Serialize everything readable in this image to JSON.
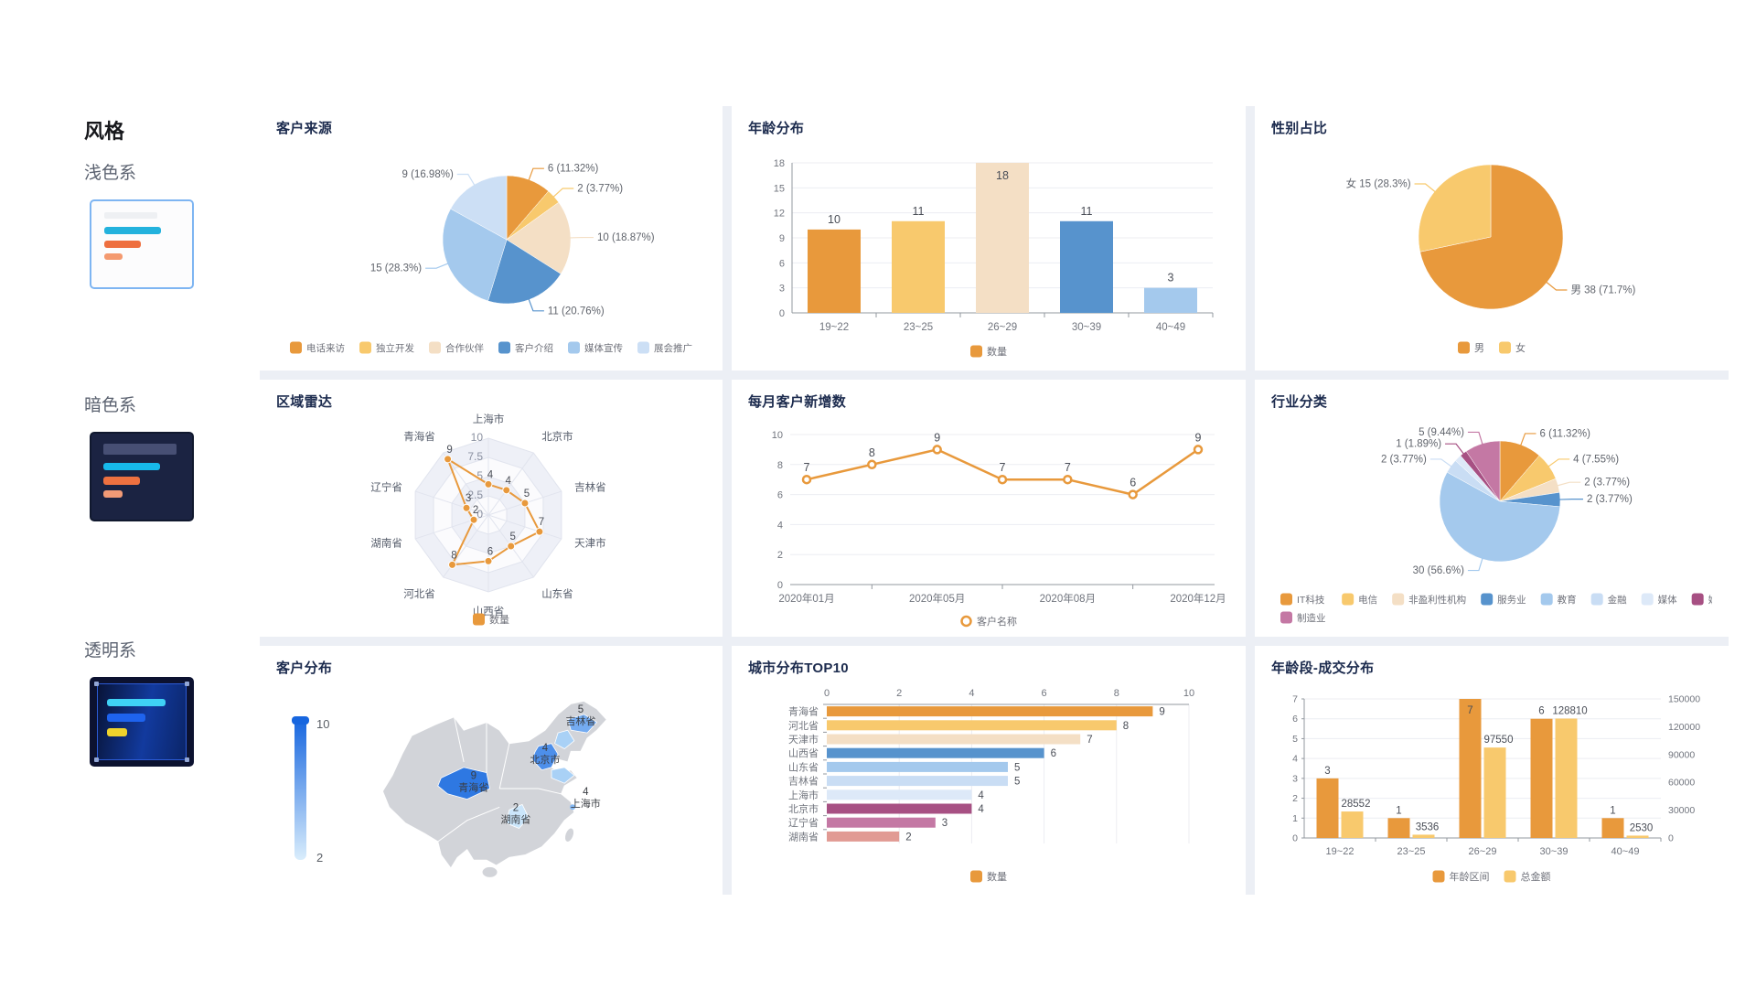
{
  "sidebar": {
    "title": "风格",
    "options": [
      {
        "label": "浅色系",
        "variant": "light",
        "selected": true
      },
      {
        "label": "暗色系",
        "variant": "dark",
        "selected": false
      },
      {
        "label": "透明系",
        "variant": "transparent",
        "selected": false
      }
    ]
  },
  "palette": {
    "orange": "#E8993C",
    "lightOrange": "#F8C96D",
    "peach": "#F4DFC5",
    "blue": "#5793CD",
    "lightBlue": "#A4C9ED",
    "paleBlue": "#C9DDF4",
    "fogBlue": "#DDE9F8",
    "magenta": "#A75083",
    "pink": "#C478A4",
    "salmon": "#E19A93",
    "axisText": "#71757e",
    "labelText": "#55595f",
    "grid": "#ecedf2",
    "axisLine": "#93989f"
  },
  "chart_data": [
    {
      "id": "customer-source",
      "type": "pie",
      "title": "客户来源",
      "items": [
        {
          "name": "电话来访",
          "value": 6,
          "label": "6 (11.32%)",
          "color": "#E8993C"
        },
        {
          "name": "独立开发",
          "value": 2,
          "label": "2 (3.77%)",
          "color": "#F8C96D"
        },
        {
          "name": "合作伙伴",
          "value": 10,
          "label": "10 (18.87%)",
          "color": "#F4DFC5"
        },
        {
          "name": "客户介绍",
          "value": 11,
          "label": "11 (20.76%)",
          "color": "#5793CD"
        },
        {
          "name": "媒体宣传",
          "value": 15,
          "label": "15 (28.3%)",
          "color": "#A4C9ED"
        },
        {
          "name": "展会推广",
          "value": 9,
          "label": "9 (16.98%)",
          "color": "#CCDFF5"
        }
      ]
    },
    {
      "id": "age-dist",
      "type": "bar",
      "title": "年龄分布",
      "categories": [
        "19~22",
        "23~25",
        "26~29",
        "30~39",
        "40~49"
      ],
      "values": [
        10,
        11,
        18,
        11,
        3
      ],
      "bar_colors": [
        "#E8993C",
        "#F8C96D",
        "#F4DFC5",
        "#5793CD",
        "#A4C9ED"
      ],
      "yticks": [
        0,
        3,
        6,
        9,
        12,
        15,
        18
      ],
      "ymax": 18,
      "legend": [
        {
          "label": "数量",
          "color": "#E8993C"
        }
      ]
    },
    {
      "id": "gender",
      "type": "pie",
      "title": "性别占比",
      "items": [
        {
          "name": "男",
          "value": 38,
          "label": "男 38 (71.7%)",
          "color": "#E8993C"
        },
        {
          "name": "女",
          "value": 15,
          "label": "女 15 (28.3%)",
          "color": "#F8C96D"
        }
      ],
      "legend": [
        {
          "label": "男",
          "color": "#E8993C"
        },
        {
          "label": "女",
          "color": "#F8C96D"
        }
      ]
    },
    {
      "id": "region-radar",
      "type": "radar",
      "title": "区域雷达",
      "indicators": [
        "上海市",
        "北京市",
        "吉林省",
        "天津市",
        "山东省",
        "山西省",
        "河北省",
        "湖南省",
        "辽宁省",
        "青海省"
      ],
      "values": [
        4,
        4,
        5,
        7,
        5,
        6,
        8,
        2,
        3,
        9
      ],
      "max": 10,
      "ring_labels": [
        "0",
        "2.5",
        "5",
        "7.5",
        "10"
      ],
      "color": "#E8993C",
      "legend": [
        {
          "label": "数量",
          "color": "#E8993C"
        }
      ]
    },
    {
      "id": "monthly-new",
      "type": "line",
      "title": "每月客户新增数",
      "x_labels": [
        "2020年01月",
        "",
        "2020年05月",
        "",
        "2020年08月",
        "",
        "2020年12月"
      ],
      "values": [
        7,
        8,
        9,
        7,
        7,
        6,
        9
      ],
      "yticks": [
        0,
        2,
        4,
        6,
        8,
        10
      ],
      "ymax": 10,
      "color": "#E8993C",
      "legend": [
        {
          "label": "客户名称",
          "color": "#E8993C",
          "shape": "ring"
        }
      ]
    },
    {
      "id": "industry",
      "type": "pie",
      "title": "行业分类",
      "legend_left": true,
      "items": [
        {
          "name": "IT科技",
          "value": 6,
          "label": "6 (11.32%)",
          "color": "#E8993C"
        },
        {
          "name": "电信",
          "value": 4,
          "label": "4 (7.55%)",
          "color": "#F8C96D"
        },
        {
          "name": "非盈利性机构",
          "value": 2,
          "label": "2 (3.77%)",
          "color": "#F4DFC5"
        },
        {
          "name": "服务业",
          "value": 2,
          "label": "2 (3.77%)",
          "color": "#5793CD"
        },
        {
          "name": "教育",
          "value": 30,
          "label": "30 (56.6%)",
          "color": "#A4C9ED"
        },
        {
          "name": "金融",
          "value": 2,
          "label": "2 (3.77%)",
          "color": "#C9DDF4"
        },
        {
          "name": "媒体",
          "value": 1,
          "label": "",
          "color": "#DDE9F8"
        },
        {
          "name": "娱乐",
          "value": 1,
          "label": "1 (1.89%)",
          "color": "#A75083"
        },
        {
          "name": "制造业",
          "value": 5,
          "label": "5 (9.44%)",
          "color": "#C478A4"
        }
      ]
    },
    {
      "id": "customer-map",
      "type": "map",
      "title": "客户分布",
      "visual_range": {
        "min": 2,
        "max": 10,
        "min_label": "2",
        "max_label": "10"
      },
      "provinces": [
        {
          "name": "青海省",
          "value": 9
        },
        {
          "name": "北京市",
          "value": 4
        },
        {
          "name": "吉林省",
          "value": 5
        },
        {
          "name": "上海市",
          "value": 4
        },
        {
          "name": "湖南省",
          "value": 2
        }
      ]
    },
    {
      "id": "city-top10",
      "type": "hbar",
      "title": "城市分布TOP10",
      "categories": [
        "青海省",
        "河北省",
        "天津市",
        "山西省",
        "山东省",
        "吉林省",
        "上海市",
        "北京市",
        "辽宁省",
        "湖南省"
      ],
      "values": [
        9,
        8,
        7,
        6,
        5,
        5,
        4,
        4,
        3,
        2
      ],
      "bar_colors": [
        "#E8993C",
        "#F8C96D",
        "#F4DFC5",
        "#5793CD",
        "#A4C9ED",
        "#C9DDF4",
        "#DDE9F8",
        "#A75083",
        "#C478A4",
        "#E19A93"
      ],
      "xticks": [
        0,
        2,
        4,
        6,
        8,
        10
      ],
      "xmax": 10,
      "legend": [
        {
          "label": "数量",
          "color": "#E8993C"
        }
      ]
    },
    {
      "id": "age-deal",
      "type": "dualbar",
      "title": "年龄段-成交分布",
      "categories": [
        "19~22",
        "23~25",
        "26~29",
        "30~39",
        "40~49"
      ],
      "series": [
        {
          "name": "年龄区间",
          "values": [
            3,
            1,
            7,
            6,
            1
          ],
          "color": "#E8993C"
        },
        {
          "name": "总金额",
          "values": [
            28552,
            3536,
            97550,
            128810,
            2530
          ],
          "color": "#F8C96D",
          "labels": [
            "28552",
            "3536",
            "97550",
            "128810",
            "2530"
          ]
        }
      ],
      "left_ticks": [
        0,
        1,
        2,
        3,
        4,
        5,
        6,
        7
      ],
      "left_max": 7,
      "right_ticks": [
        "0",
        "30000",
        "60000",
        "90000",
        "120000",
        "150000"
      ],
      "right_max": 150000
    }
  ]
}
